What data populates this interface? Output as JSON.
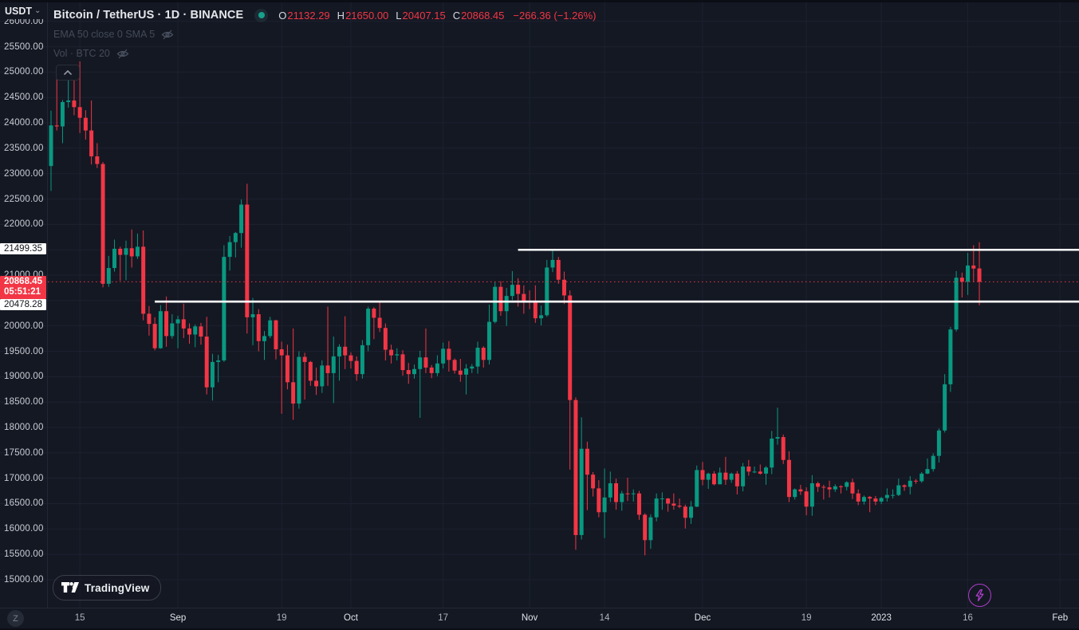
{
  "app": {
    "currency_label": "USDT",
    "watermark": "TradingView",
    "timezone_button": "Z"
  },
  "header": {
    "symbol_title": "Bitcoin / TetherUS · 1D · BINANCE",
    "ohlc": {
      "o_label": "O",
      "o": "21132.29",
      "h_label": "H",
      "h": "21650.00",
      "l_label": "L",
      "l": "20407.15",
      "c_label": "C",
      "c": "20868.45",
      "change": "−266.36 (−1.26%)"
    },
    "indicators": [
      {
        "label": "EMA 50 close 0 SMA 5",
        "hidden": true
      },
      {
        "label": "Vol · BTC 20",
        "hidden": true
      }
    ]
  },
  "price_scale": {
    "labels": [
      "26000.00",
      "25500.00",
      "25000.00",
      "24500.00",
      "24000.00",
      "23500.00",
      "23000.00",
      "22500.00",
      "22000.00",
      "21000.00",
      "20000.00",
      "19500.00",
      "19000.00",
      "18500.00",
      "18000.00",
      "17500.00",
      "17000.00",
      "16500.00",
      "16000.00",
      "15500.00",
      "15000.00"
    ],
    "level_badges": [
      {
        "text": "21499.35",
        "price": 21499.35
      },
      {
        "text": "20478.28",
        "price": 20478.28,
        "push_down": true
      }
    ],
    "current_badge": {
      "price_text": "20868.45",
      "countdown": "05:51:21",
      "price": 20868.45
    }
  },
  "time_scale": {
    "ticks": [
      {
        "label": "15",
        "index": 5,
        "major": false
      },
      {
        "label": "Sep",
        "index": 22,
        "major": true
      },
      {
        "label": "19",
        "index": 40,
        "major": false
      },
      {
        "label": "Oct",
        "index": 52,
        "major": true
      },
      {
        "label": "17",
        "index": 68,
        "major": false
      },
      {
        "label": "Nov",
        "index": 83,
        "major": true
      },
      {
        "label": "14",
        "index": 96,
        "major": false
      },
      {
        "label": "Dec",
        "index": 113,
        "major": true
      },
      {
        "label": "19",
        "index": 131,
        "major": false
      },
      {
        "label": "2023",
        "index": 144,
        "major": true
      },
      {
        "label": "16",
        "index": 159,
        "major": false
      },
      {
        "label": "Feb",
        "index": 175,
        "major": true
      }
    ]
  },
  "chart_data": {
    "type": "candlestick",
    "symbol": "BTCUSDT",
    "exchange": "BINANCE",
    "interval": "1D",
    "start_date": "2022-08-10",
    "interval_days": 1,
    "price_axis": {
      "min": 15000,
      "max": 26000,
      "step": 500
    },
    "current_price_line": {
      "price": 20868.45,
      "style": "dotted"
    },
    "horizontal_rays": [
      {
        "price": 21499.35,
        "start_index": 81
      },
      {
        "price": 20478.28,
        "start_index": 18
      }
    ],
    "candles": [
      [
        23150,
        24240,
        22660,
        23950
      ],
      [
        23950,
        24920,
        23850,
        23930
      ],
      [
        23930,
        24450,
        23600,
        24410
      ],
      [
        24410,
        24890,
        24300,
        24440
      ],
      [
        24440,
        25050,
        24150,
        24310
      ],
      [
        24310,
        25210,
        23800,
        24100
      ],
      [
        24100,
        24250,
        23670,
        23850
      ],
      [
        23850,
        24440,
        23180,
        23340
      ],
      [
        23340,
        23600,
        23110,
        23190
      ],
      [
        23190,
        23230,
        20760,
        20830
      ],
      [
        20830,
        21380,
        20770,
        21140
      ],
      [
        21140,
        21700,
        21070,
        21520
      ],
      [
        21520,
        21560,
        20890,
        21400
      ],
      [
        21400,
        21680,
        20900,
        21530
      ],
      [
        21530,
        21900,
        21150,
        21370
      ],
      [
        21370,
        21820,
        21320,
        21560
      ],
      [
        21560,
        21880,
        20110,
        20240
      ],
      [
        20240,
        20390,
        19810,
        20040
      ],
      [
        20040,
        20170,
        19520,
        19560
      ],
      [
        19560,
        20410,
        19550,
        20290
      ],
      [
        20290,
        20580,
        19590,
        19800
      ],
      [
        19800,
        20230,
        19750,
        20050
      ],
      [
        20050,
        20200,
        19560,
        20130
      ],
      [
        20130,
        20440,
        19760,
        19950
      ],
      [
        19950,
        20050,
        19650,
        19830
      ],
      [
        19830,
        20030,
        19580,
        19990
      ],
      [
        19990,
        20060,
        19630,
        19790
      ],
      [
        19790,
        20180,
        18650,
        18790
      ],
      [
        18790,
        19450,
        18530,
        19290
      ],
      [
        19290,
        19430,
        18890,
        19320
      ],
      [
        19320,
        21590,
        19290,
        21360
      ],
      [
        21360,
        21770,
        21090,
        21650
      ],
      [
        21650,
        21850,
        21350,
        21830
      ],
      [
        21830,
        22490,
        21540,
        22390
      ],
      [
        22390,
        22800,
        19850,
        20170
      ],
      [
        20170,
        20550,
        19620,
        20230
      ],
      [
        20230,
        20330,
        19500,
        19700
      ],
      [
        19700,
        19900,
        19330,
        19800
      ],
      [
        19800,
        20180,
        19760,
        20110
      ],
      [
        20110,
        20120,
        19340,
        19540
      ],
      [
        19540,
        19690,
        18270,
        19420
      ],
      [
        19420,
        19630,
        18750,
        18890
      ],
      [
        18890,
        19950,
        18150,
        18470
      ],
      [
        18470,
        19500,
        18370,
        19390
      ],
      [
        19390,
        19470,
        18550,
        19290
      ],
      [
        19290,
        19310,
        18820,
        18920
      ],
      [
        18920,
        19180,
        18640,
        18810
      ],
      [
        18810,
        19320,
        18680,
        19220
      ],
      [
        19220,
        20380,
        18820,
        19070
      ],
      [
        19070,
        19790,
        18480,
        19400
      ],
      [
        19400,
        19640,
        18920,
        19590
      ],
      [
        19590,
        20190,
        19150,
        19420
      ],
      [
        19420,
        19480,
        19160,
        19310
      ],
      [
        19310,
        19400,
        18920,
        19050
      ],
      [
        19050,
        19720,
        18960,
        19620
      ],
      [
        19620,
        20380,
        19500,
        20340
      ],
      [
        20340,
        20370,
        19740,
        20160
      ],
      [
        20160,
        20460,
        19880,
        19960
      ],
      [
        19960,
        20050,
        19320,
        19530
      ],
      [
        19530,
        19630,
        19260,
        19420
      ],
      [
        19420,
        19560,
        19320,
        19440
      ],
      [
        19440,
        19520,
        19020,
        19130
      ],
      [
        19130,
        19270,
        18860,
        19050
      ],
      [
        19050,
        19240,
        18960,
        19150
      ],
      [
        19150,
        19510,
        18190,
        19380
      ],
      [
        19380,
        19950,
        19070,
        19180
      ],
      [
        19180,
        19230,
        18970,
        19070
      ],
      [
        19070,
        19420,
        19010,
        19260
      ],
      [
        19260,
        19670,
        19160,
        19550
      ],
      [
        19550,
        19700,
        19100,
        19330
      ],
      [
        19330,
        19360,
        19060,
        19120
      ],
      [
        19120,
        19350,
        18900,
        19040
      ],
      [
        19040,
        19250,
        18650,
        19160
      ],
      [
        19160,
        19250,
        19070,
        19200
      ],
      [
        19200,
        19690,
        19060,
        19570
      ],
      [
        19570,
        19600,
        19180,
        19330
      ],
      [
        19330,
        20420,
        19240,
        20080
      ],
      [
        20080,
        20860,
        20050,
        20770
      ],
      [
        20770,
        20880,
        20200,
        20290
      ],
      [
        20290,
        20750,
        20000,
        20590
      ],
      [
        20590,
        21080,
        20510,
        20810
      ],
      [
        20810,
        20940,
        20380,
        20630
      ],
      [
        20630,
        20800,
        20240,
        20490
      ],
      [
        20490,
        20700,
        20330,
        20480
      ],
      [
        20480,
        20800,
        20060,
        20150
      ],
      [
        20150,
        20400,
        20010,
        20210
      ],
      [
        20210,
        21300,
        20180,
        21150
      ],
      [
        21150,
        21480,
        21060,
        21300
      ],
      [
        21300,
        21360,
        20830,
        20910
      ],
      [
        20910,
        21070,
        20430,
        20600
      ],
      [
        20600,
        20700,
        17170,
        18540
      ],
      [
        18540,
        18590,
        15590,
        15880
      ],
      [
        15880,
        18200,
        15790,
        17580
      ],
      [
        17580,
        17720,
        16370,
        17070
      ],
      [
        17070,
        17120,
        16640,
        16800
      ],
      [
        16800,
        16960,
        16230,
        16330
      ],
      [
        16330,
        17190,
        15820,
        16620
      ],
      [
        16620,
        17130,
        16530,
        16900
      ],
      [
        16900,
        16990,
        16380,
        16530
      ],
      [
        16530,
        16750,
        16360,
        16700
      ],
      [
        16700,
        17010,
        16550,
        16690
      ],
      [
        16690,
        16780,
        16540,
        16700
      ],
      [
        16700,
        16750,
        16180,
        16280
      ],
      [
        16280,
        16310,
        15480,
        15780
      ],
      [
        15780,
        16290,
        15610,
        16230
      ],
      [
        16230,
        16700,
        16150,
        16600
      ],
      [
        16600,
        16720,
        16380,
        16600
      ],
      [
        16600,
        16610,
        16340,
        16500
      ],
      [
        16500,
        16700,
        16380,
        16460
      ],
      [
        16460,
        16600,
        16410,
        16440
      ],
      [
        16440,
        16480,
        16010,
        16220
      ],
      [
        16220,
        16550,
        16100,
        16440
      ],
      [
        16440,
        17250,
        16430,
        17160
      ],
      [
        17160,
        17320,
        16860,
        16970
      ],
      [
        16970,
        17110,
        16790,
        17090
      ],
      [
        17090,
        17140,
        16860,
        16880
      ],
      [
        16880,
        17210,
        16880,
        17110
      ],
      [
        17110,
        17420,
        16870,
        16970
      ],
      [
        16970,
        17110,
        16910,
        17090
      ],
      [
        17090,
        17140,
        16680,
        16840
      ],
      [
        16840,
        17300,
        16740,
        17230
      ],
      [
        17230,
        17360,
        17050,
        17130
      ],
      [
        17130,
        17230,
        17100,
        17130
      ],
      [
        17130,
        17270,
        17070,
        17090
      ],
      [
        17090,
        17240,
        16870,
        17210
      ],
      [
        17210,
        17930,
        17080,
        17780
      ],
      [
        17780,
        18390,
        17660,
        17810
      ],
      [
        17810,
        17860,
        17280,
        17360
      ],
      [
        17360,
        17530,
        16530,
        16630
      ],
      [
        16630,
        16800,
        16580,
        16780
      ],
      [
        16780,
        16870,
        16670,
        16740
      ],
      [
        16740,
        16820,
        16270,
        16440
      ],
      [
        16440,
        17060,
        16260,
        16900
      ],
      [
        16900,
        16930,
        16730,
        16830
      ],
      [
        16830,
        16870,
        16580,
        16820
      ],
      [
        16820,
        16950,
        16620,
        16780
      ],
      [
        16780,
        16880,
        16730,
        16840
      ],
      [
        16840,
        16860,
        16700,
        16830
      ],
      [
        16830,
        16940,
        16760,
        16920
      ],
      [
        16920,
        16990,
        16590,
        16700
      ],
      [
        16700,
        16780,
        16470,
        16540
      ],
      [
        16540,
        16660,
        16480,
        16630
      ],
      [
        16630,
        16650,
        16330,
        16600
      ],
      [
        16600,
        16650,
        16470,
        16540
      ],
      [
        16540,
        16630,
        16490,
        16610
      ],
      [
        16610,
        16800,
        16540,
        16670
      ],
      [
        16670,
        16780,
        16600,
        16670
      ],
      [
        16670,
        16990,
        16650,
        16860
      ],
      [
        16860,
        16880,
        16750,
        16830
      ],
      [
        16830,
        17040,
        16680,
        16950
      ],
      [
        16950,
        16980,
        16890,
        16940
      ],
      [
        16940,
        17120,
        16910,
        17090
      ],
      [
        17090,
        17390,
        17080,
        17180
      ],
      [
        17180,
        17490,
        17130,
        17440
      ],
      [
        17440,
        17980,
        17310,
        17940
      ],
      [
        17940,
        19050,
        17900,
        18850
      ],
      [
        18850,
        19980,
        18700,
        19930
      ],
      [
        19930,
        21080,
        19890,
        20950
      ],
      [
        20950,
        21050,
        20560,
        20870
      ],
      [
        20870,
        21440,
        20610,
        21190
      ],
      [
        21190,
        21590,
        20860,
        21130
      ],
      [
        21132.29,
        21650,
        20407.15,
        20868.45
      ]
    ]
  },
  "colors": {
    "background": "#141823",
    "grid": "#1d2130",
    "bull": "#089981",
    "bear": "#f23645",
    "axis_text": "#c9ccd2",
    "dim_text": "#787b86",
    "hidden_indicator_text": "#434a58",
    "white_line": "#ffffff",
    "current_price": "#f23645",
    "boost_purple": "#ad3dc9",
    "status_dot": "#17a08c"
  }
}
